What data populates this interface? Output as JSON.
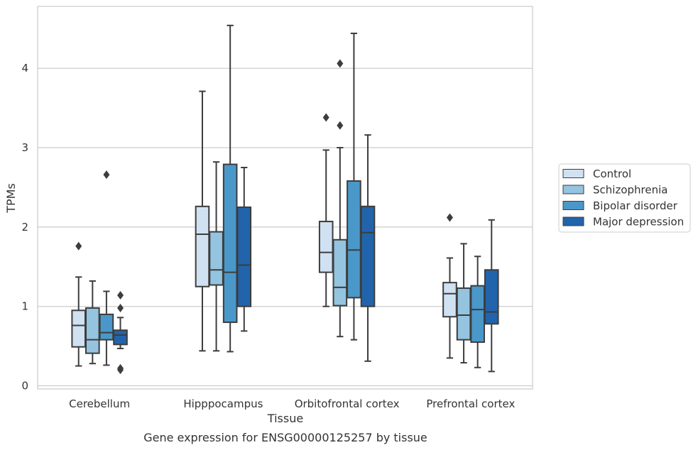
{
  "chart_data": {
    "type": "box",
    "caption": "Gene expression for ENSG00000125257 by tissue",
    "xlabel": "Tissue",
    "ylabel": "TPMs",
    "ylim": [
      -0.04,
      4.78
    ],
    "yticks": [
      0,
      1,
      2,
      3,
      4
    ],
    "grid": "horizontal",
    "legend_position": "right",
    "categories": [
      "Cerebellum",
      "Hipppocampus",
      "Orbitofrontal cortex",
      "Prefrontal cortex"
    ],
    "series": [
      {
        "name": "Control",
        "color": "#d0e1f2",
        "boxes": [
          {
            "whislo": 0.25,
            "q1": 0.49,
            "median": 0.76,
            "q3": 0.95,
            "whishi": 1.37,
            "fliers": [
              1.76
            ]
          },
          {
            "whislo": 0.44,
            "q1": 1.25,
            "median": 1.91,
            "q3": 2.26,
            "whishi": 3.71,
            "fliers": []
          },
          {
            "whislo": 1.0,
            "q1": 1.43,
            "median": 1.68,
            "q3": 2.07,
            "whishi": 2.97,
            "fliers": [
              3.38
            ]
          },
          {
            "whislo": 0.35,
            "q1": 0.87,
            "median": 1.16,
            "q3": 1.3,
            "whishi": 1.61,
            "fliers": [
              2.12
            ]
          }
        ]
      },
      {
        "name": "Schizophrenia",
        "color": "#94c4df",
        "boxes": [
          {
            "whislo": 0.28,
            "q1": 0.41,
            "median": 0.58,
            "q3": 0.98,
            "whishi": 1.32,
            "fliers": []
          },
          {
            "whislo": 0.44,
            "q1": 1.27,
            "median": 1.46,
            "q3": 1.94,
            "whishi": 2.82,
            "fliers": []
          },
          {
            "whislo": 0.62,
            "q1": 1.01,
            "median": 1.24,
            "q3": 1.84,
            "whishi": 3.0,
            "fliers": [
              3.28,
              4.06
            ]
          },
          {
            "whislo": 0.29,
            "q1": 0.58,
            "median": 0.89,
            "q3": 1.23,
            "whishi": 1.79,
            "fliers": []
          }
        ]
      },
      {
        "name": "Bipolar disorder",
        "color": "#4a98c9",
        "boxes": [
          {
            "whislo": 0.26,
            "q1": 0.58,
            "median": 0.67,
            "q3": 0.9,
            "whishi": 1.19,
            "fliers": [
              2.66
            ]
          },
          {
            "whislo": 0.43,
            "q1": 0.8,
            "median": 1.43,
            "q3": 2.79,
            "whishi": 4.54,
            "fliers": []
          },
          {
            "whislo": 0.58,
            "q1": 1.11,
            "median": 1.71,
            "q3": 2.58,
            "whishi": 4.44,
            "fliers": []
          },
          {
            "whislo": 0.23,
            "q1": 0.55,
            "median": 0.96,
            "q3": 1.26,
            "whishi": 1.63,
            "fliers": []
          }
        ]
      },
      {
        "name": "Major depression",
        "color": "#2164ab",
        "boxes": [
          {
            "whislo": 0.47,
            "q1": 0.52,
            "median": 0.64,
            "q3": 0.7,
            "whishi": 0.86,
            "fliers": [
              0.2,
              0.22,
              0.98,
              1.14
            ]
          },
          {
            "whislo": 0.69,
            "q1": 1.0,
            "median": 1.52,
            "q3": 2.25,
            "whishi": 2.75,
            "fliers": []
          },
          {
            "whislo": 0.31,
            "q1": 1.0,
            "median": 1.93,
            "q3": 2.26,
            "whishi": 3.16,
            "fliers": []
          },
          {
            "whislo": 0.18,
            "q1": 0.78,
            "median": 0.93,
            "q3": 1.46,
            "whishi": 2.09,
            "fliers": []
          }
        ]
      }
    ]
  }
}
